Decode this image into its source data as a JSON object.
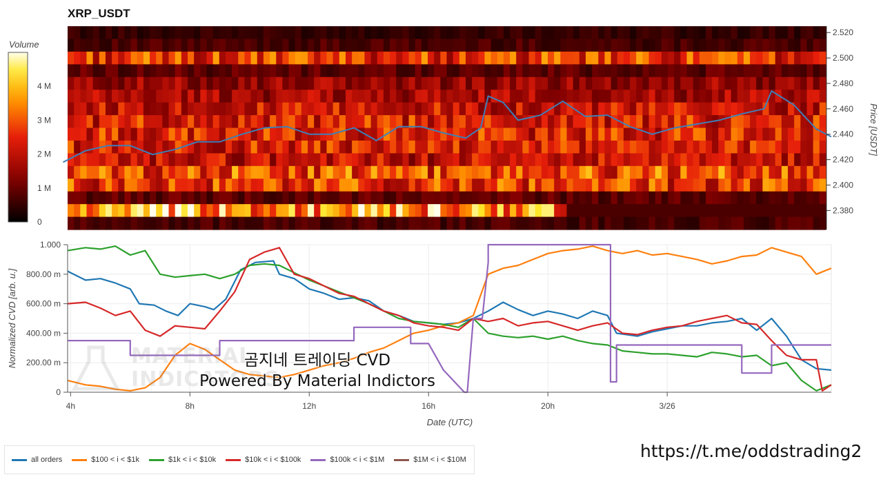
{
  "chart_data": [
    {
      "type": "heatmap",
      "title": "XRP_USDT",
      "ylabel": "Price [USDT]",
      "colorbar_label": "Volume",
      "colorbar_ticks": [
        "0",
        "1 M",
        "2 M",
        "3 M",
        "4 M"
      ],
      "colorbar_values": [
        0,
        1000000,
        2000000,
        3000000,
        4000000
      ],
      "colorbar_max": 5000000,
      "price_ticks": [
        "2.380",
        "2.400",
        "2.420",
        "2.440",
        "2.460",
        "2.480",
        "2.500",
        "2.520"
      ],
      "price_tick_values": [
        2.38,
        2.4,
        2.42,
        2.44,
        2.46,
        2.48,
        2.5,
        2.52
      ],
      "ylim": [
        2.365,
        2.525
      ],
      "bands": [
        {
          "price": 2.52,
          "volume": 500000
        },
        {
          "price": 2.51,
          "volume": 700000
        },
        {
          "price": 2.5,
          "volume": 2600000
        },
        {
          "price": 2.49,
          "volume": 900000
        },
        {
          "price": 2.48,
          "volume": 1500000
        },
        {
          "price": 2.47,
          "volume": 1700000
        },
        {
          "price": 2.46,
          "volume": 2100000
        },
        {
          "price": 2.45,
          "volume": 2300000
        },
        {
          "price": 2.44,
          "volume": 2400000
        },
        {
          "price": 2.43,
          "volume": 2300000
        },
        {
          "price": 2.42,
          "volume": 2000000
        },
        {
          "price": 2.41,
          "volume": 2800000
        },
        {
          "price": 2.4,
          "volume": 2600000
        },
        {
          "price": 2.39,
          "volume": 900000
        },
        {
          "price": 2.38,
          "volume": 3600000
        },
        {
          "price": 2.37,
          "volume": 700000
        }
      ],
      "price_line": {
        "x": [
          3.75,
          4.5,
          5.25,
          6,
          6.75,
          7.5,
          8.25,
          9,
          9.75,
          10.5,
          11.25,
          12,
          12.75,
          13.5,
          14.25,
          15,
          15.75,
          16.5,
          17.25,
          17.75,
          18,
          18.5,
          19,
          19.75,
          20.5,
          21.25,
          22,
          22.75,
          23.5,
          24.25,
          25,
          25.75,
          26.5,
          27.25,
          27.5,
          28.25,
          29,
          29.5
        ],
        "y": [
          2.418,
          2.427,
          2.431,
          2.431,
          2.424,
          2.428,
          2.434,
          2.434,
          2.44,
          2.445,
          2.446,
          2.44,
          2.44,
          2.445,
          2.435,
          2.446,
          2.446,
          2.441,
          2.437,
          2.445,
          2.47,
          2.465,
          2.451,
          2.455,
          2.466,
          2.454,
          2.455,
          2.446,
          2.44,
          2.445,
          2.448,
          2.451,
          2.456,
          2.46,
          2.474,
          2.463,
          2.444,
          2.438
        ]
      }
    },
    {
      "type": "line",
      "xlabel": "Date (UTC)",
      "ylabel": "Normalized CVD [arb. u.]",
      "xlim": [
        3.9,
        29.5
      ],
      "ylim": [
        0,
        1
      ],
      "x_ticks": [
        "4h",
        "8h",
        "12h",
        "16h",
        "20h",
        "3/26"
      ],
      "x_tick_values": [
        4,
        8,
        12,
        16,
        20,
        24
      ],
      "y_ticks": [
        "0",
        "200.00 m",
        "400.00 m",
        "600.00 m",
        "800.00 m",
        "1.000"
      ],
      "y_tick_values": [
        0,
        0.2,
        0.4,
        0.6,
        0.8,
        1.0
      ],
      "series": [
        {
          "name": "all orders",
          "color": "#1f77b4",
          "x": [
            3.9,
            4.5,
            5,
            5.5,
            6,
            6.3,
            6.8,
            7.2,
            7.6,
            8,
            8.5,
            8.8,
            9.2,
            9.7,
            10.2,
            10.8,
            11,
            11.5,
            12,
            12.5,
            13,
            13.5,
            14,
            14.5,
            15,
            15.5,
            16,
            16.5,
            17,
            17.5,
            18,
            18.5,
            19,
            19.5,
            20,
            20.5,
            21,
            21.5,
            22,
            22.3,
            23,
            23.5,
            24,
            24.5,
            25,
            25.5,
            26,
            26.5,
            27,
            27.5,
            28,
            28.5,
            29,
            29.5
          ],
          "y": [
            0.82,
            0.76,
            0.77,
            0.74,
            0.7,
            0.6,
            0.59,
            0.55,
            0.52,
            0.6,
            0.58,
            0.56,
            0.63,
            0.83,
            0.88,
            0.89,
            0.8,
            0.77,
            0.7,
            0.67,
            0.63,
            0.64,
            0.62,
            0.55,
            0.52,
            0.48,
            0.47,
            0.46,
            0.47,
            0.5,
            0.55,
            0.61,
            0.56,
            0.52,
            0.55,
            0.53,
            0.5,
            0.55,
            0.52,
            0.4,
            0.38,
            0.41,
            0.43,
            0.45,
            0.45,
            0.47,
            0.48,
            0.5,
            0.42,
            0.5,
            0.38,
            0.22,
            0.16,
            0.15
          ]
        },
        {
          "name": "$100 < i < $1k",
          "color": "#ff7f0e",
          "x": [
            3.9,
            4.5,
            5,
            5.5,
            6,
            6.5,
            7,
            7.5,
            8,
            8.5,
            9,
            9.5,
            10,
            10.5,
            11,
            11.5,
            12,
            12.5,
            13,
            13.5,
            14,
            14.5,
            15,
            15.5,
            16,
            16.5,
            17,
            17.5,
            18,
            18.5,
            19,
            19.5,
            20,
            20.5,
            21,
            21.5,
            22,
            22.5,
            23,
            23.5,
            24,
            24.5,
            25,
            25.5,
            26,
            26.5,
            27,
            27.5,
            28,
            28.5,
            29,
            29.5
          ],
          "y": [
            0.08,
            0.05,
            0.04,
            0.02,
            0.01,
            0.03,
            0.1,
            0.25,
            0.33,
            0.29,
            0.22,
            0.15,
            0.12,
            0.11,
            0.1,
            0.12,
            0.15,
            0.18,
            0.2,
            0.23,
            0.27,
            0.3,
            0.35,
            0.4,
            0.42,
            0.45,
            0.47,
            0.52,
            0.8,
            0.84,
            0.86,
            0.9,
            0.94,
            0.96,
            0.97,
            0.99,
            0.96,
            0.94,
            0.96,
            0.93,
            0.94,
            0.92,
            0.9,
            0.87,
            0.89,
            0.92,
            0.93,
            0.98,
            0.95,
            0.92,
            0.8,
            0.84
          ]
        },
        {
          "name": "$1k < i < $10k",
          "color": "#2ca02c",
          "x": [
            3.9,
            4.5,
            5,
            5.5,
            6,
            6.5,
            7,
            7.5,
            8,
            8.5,
            9,
            9.5,
            10,
            10.5,
            11,
            11.5,
            12,
            12.5,
            13,
            13.5,
            14,
            14.5,
            15,
            15.5,
            16,
            16.5,
            17,
            17.5,
            18,
            18.5,
            19,
            19.5,
            20,
            20.5,
            21,
            21.5,
            22,
            22.5,
            23,
            23.5,
            24,
            24.5,
            25,
            25.5,
            26,
            26.5,
            27,
            27.5,
            28,
            28.5,
            29,
            29.5
          ],
          "y": [
            0.96,
            0.98,
            0.97,
            0.99,
            0.93,
            0.96,
            0.8,
            0.78,
            0.79,
            0.8,
            0.77,
            0.8,
            0.86,
            0.87,
            0.86,
            0.81,
            0.76,
            0.72,
            0.68,
            0.64,
            0.6,
            0.55,
            0.5,
            0.48,
            0.47,
            0.46,
            0.44,
            0.5,
            0.4,
            0.38,
            0.37,
            0.38,
            0.36,
            0.38,
            0.35,
            0.33,
            0.32,
            0.28,
            0.27,
            0.26,
            0.26,
            0.25,
            0.24,
            0.27,
            0.26,
            0.24,
            0.25,
            0.18,
            0.2,
            0.08,
            0.01,
            0.05
          ]
        },
        {
          "name": "$10k < i < $100k",
          "color": "#d62728",
          "x": [
            3.9,
            4.5,
            5,
            5.5,
            6,
            6.5,
            7,
            7.5,
            8,
            8.5,
            9,
            9.5,
            10,
            10.5,
            11,
            11.5,
            12,
            12.5,
            13,
            13.5,
            14,
            14.5,
            15,
            15.5,
            16,
            16.5,
            17,
            17.5,
            18,
            18.5,
            19,
            19.5,
            20,
            20.5,
            21,
            21.5,
            22,
            22.5,
            23,
            23.5,
            24,
            24.5,
            25,
            25.5,
            26,
            26.5,
            27,
            27.5,
            28,
            28.5,
            29,
            29.2,
            29.5
          ],
          "y": [
            0.6,
            0.61,
            0.57,
            0.52,
            0.55,
            0.42,
            0.38,
            0.45,
            0.44,
            0.43,
            0.55,
            0.68,
            0.9,
            0.95,
            0.98,
            0.8,
            0.77,
            0.72,
            0.67,
            0.65,
            0.6,
            0.55,
            0.52,
            0.47,
            0.45,
            0.44,
            0.42,
            0.5,
            0.48,
            0.5,
            0.45,
            0.47,
            0.48,
            0.45,
            0.42,
            0.45,
            0.47,
            0.4,
            0.39,
            0.42,
            0.44,
            0.45,
            0.48,
            0.5,
            0.52,
            0.47,
            0.46,
            0.35,
            0.25,
            0.22,
            0.22,
            0.01,
            0.05
          ]
        },
        {
          "name": "$100k < i < $1M",
          "color": "#9467bd",
          "x": [
            3.9,
            6.0,
            6.0,
            7.2,
            9.0,
            9.0,
            13.5,
            13.5,
            15.4,
            15.4,
            16.0,
            16.5,
            17.2,
            17.3,
            17.5,
            17.8,
            18.0,
            18.0,
            22.1,
            22.1,
            22.3,
            22.3,
            26.5,
            26.5,
            27.5,
            27.5,
            29.5
          ],
          "y": [
            0.35,
            0.35,
            0.25,
            0.25,
            0.25,
            0.35,
            0.35,
            0.44,
            0.44,
            0.33,
            0.33,
            0.15,
            0.0,
            0.0,
            0.5,
            0.5,
            0.88,
            1.0,
            1.0,
            0.07,
            0.07,
            0.32,
            0.32,
            0.13,
            0.13,
            0.32,
            0.32
          ]
        },
        {
          "name": "$1M < i < $10M",
          "color": "#8c564b",
          "x": [],
          "y": []
        }
      ]
    }
  ],
  "overlay": {
    "line1": "곰지네 트레이딩 CVD",
    "line2": "Powered By Material Indictors"
  },
  "watermark": {
    "line1": "MATERIAL",
    "line2": "INDICATORS"
  },
  "link": "https://t.me/oddstrading2"
}
